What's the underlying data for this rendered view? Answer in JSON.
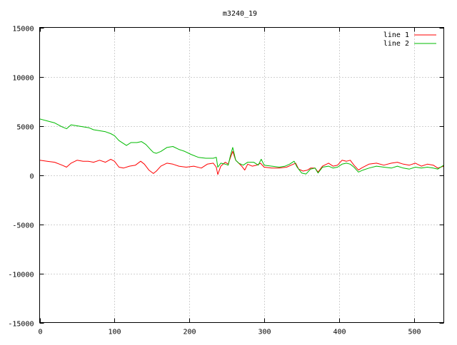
{
  "chart_data": {
    "type": "line",
    "title": "m3240_19",
    "xlabel": "",
    "ylabel": "",
    "xlim": [
      0,
      540
    ],
    "ylim": [
      -15000,
      15000
    ],
    "x_ticks": [
      0,
      100,
      200,
      300,
      400,
      500
    ],
    "y_ticks": [
      -15000,
      -10000,
      -5000,
      0,
      5000,
      10000,
      15000
    ],
    "grid": true,
    "legend_position": "top-right",
    "series": [
      {
        "name": "line 1",
        "color": "#ff0000",
        "points": [
          [
            0,
            1500
          ],
          [
            10,
            1400
          ],
          [
            20,
            1300
          ],
          [
            30,
            1000
          ],
          [
            36,
            800
          ],
          [
            42,
            1200
          ],
          [
            50,
            1500
          ],
          [
            58,
            1400
          ],
          [
            65,
            1400
          ],
          [
            72,
            1300
          ],
          [
            80,
            1500
          ],
          [
            88,
            1300
          ],
          [
            95,
            1600
          ],
          [
            100,
            1400
          ],
          [
            106,
            800
          ],
          [
            112,
            700
          ],
          [
            120,
            900
          ],
          [
            128,
            1000
          ],
          [
            135,
            1400
          ],
          [
            140,
            1100
          ],
          [
            146,
            500
          ],
          [
            152,
            150
          ],
          [
            156,
            400
          ],
          [
            162,
            900
          ],
          [
            170,
            1200
          ],
          [
            178,
            1100
          ],
          [
            186,
            900
          ],
          [
            196,
            800
          ],
          [
            206,
            900
          ],
          [
            216,
            700
          ],
          [
            224,
            1100
          ],
          [
            232,
            1200
          ],
          [
            236,
            800
          ],
          [
            238,
            50
          ],
          [
            242,
            900
          ],
          [
            248,
            1300
          ],
          [
            252,
            1100
          ],
          [
            255,
            1800
          ],
          [
            258,
            2400
          ],
          [
            262,
            1500
          ],
          [
            266,
            1200
          ],
          [
            270,
            900
          ],
          [
            274,
            500
          ],
          [
            278,
            1100
          ],
          [
            284,
            900
          ],
          [
            290,
            1000
          ],
          [
            295,
            1200
          ],
          [
            300,
            800
          ],
          [
            310,
            700
          ],
          [
            320,
            700
          ],
          [
            330,
            800
          ],
          [
            336,
            1000
          ],
          [
            342,
            1200
          ],
          [
            346,
            600
          ],
          [
            352,
            400
          ],
          [
            358,
            500
          ],
          [
            362,
            700
          ],
          [
            368,
            700
          ],
          [
            372,
            300
          ],
          [
            378,
            900
          ],
          [
            386,
            1200
          ],
          [
            392,
            900
          ],
          [
            398,
            1000
          ],
          [
            404,
            1500
          ],
          [
            410,
            1400
          ],
          [
            415,
            1500
          ],
          [
            420,
            1000
          ],
          [
            426,
            500
          ],
          [
            430,
            700
          ],
          [
            440,
            1100
          ],
          [
            450,
            1200
          ],
          [
            460,
            1000
          ],
          [
            470,
            1200
          ],
          [
            478,
            1300
          ],
          [
            486,
            1100
          ],
          [
            494,
            1000
          ],
          [
            502,
            1200
          ],
          [
            510,
            900
          ],
          [
            518,
            1100
          ],
          [
            526,
            1000
          ],
          [
            532,
            700
          ],
          [
            540,
            900
          ]
        ]
      },
      {
        "name": "line 2",
        "color": "#00bb00",
        "points": [
          [
            0,
            5700
          ],
          [
            10,
            5500
          ],
          [
            20,
            5300
          ],
          [
            30,
            4900
          ],
          [
            36,
            4700
          ],
          [
            42,
            5100
          ],
          [
            50,
            5000
          ],
          [
            58,
            4900
          ],
          [
            66,
            4800
          ],
          [
            72,
            4600
          ],
          [
            80,
            4500
          ],
          [
            88,
            4400
          ],
          [
            95,
            4200
          ],
          [
            100,
            4000
          ],
          [
            106,
            3500
          ],
          [
            112,
            3200
          ],
          [
            116,
            3000
          ],
          [
            122,
            3300
          ],
          [
            130,
            3300
          ],
          [
            136,
            3400
          ],
          [
            142,
            3100
          ],
          [
            148,
            2600
          ],
          [
            152,
            2300
          ],
          [
            156,
            2200
          ],
          [
            162,
            2400
          ],
          [
            170,
            2800
          ],
          [
            178,
            2900
          ],
          [
            186,
            2600
          ],
          [
            194,
            2400
          ],
          [
            202,
            2100
          ],
          [
            212,
            1800
          ],
          [
            222,
            1700
          ],
          [
            232,
            1700
          ],
          [
            236,
            1800
          ],
          [
            238,
            800
          ],
          [
            242,
            1200
          ],
          [
            248,
            1100
          ],
          [
            252,
            1000
          ],
          [
            255,
            2000
          ],
          [
            258,
            2800
          ],
          [
            262,
            1500
          ],
          [
            266,
            1200
          ],
          [
            272,
            1000
          ],
          [
            278,
            1300
          ],
          [
            286,
            1300
          ],
          [
            292,
            1000
          ],
          [
            296,
            1600
          ],
          [
            300,
            1000
          ],
          [
            310,
            900
          ],
          [
            320,
            800
          ],
          [
            328,
            900
          ],
          [
            334,
            1100
          ],
          [
            340,
            1400
          ],
          [
            344,
            800
          ],
          [
            350,
            200
          ],
          [
            356,
            100
          ],
          [
            362,
            600
          ],
          [
            368,
            700
          ],
          [
            372,
            200
          ],
          [
            378,
            800
          ],
          [
            386,
            900
          ],
          [
            392,
            700
          ],
          [
            398,
            800
          ],
          [
            404,
            1100
          ],
          [
            410,
            1200
          ],
          [
            415,
            1100
          ],
          [
            420,
            800
          ],
          [
            426,
            300
          ],
          [
            432,
            500
          ],
          [
            440,
            700
          ],
          [
            450,
            900
          ],
          [
            460,
            800
          ],
          [
            470,
            700
          ],
          [
            478,
            900
          ],
          [
            486,
            700
          ],
          [
            494,
            600
          ],
          [
            502,
            800
          ],
          [
            510,
            700
          ],
          [
            518,
            800
          ],
          [
            526,
            700
          ],
          [
            532,
            600
          ],
          [
            540,
            1000
          ]
        ]
      }
    ]
  }
}
